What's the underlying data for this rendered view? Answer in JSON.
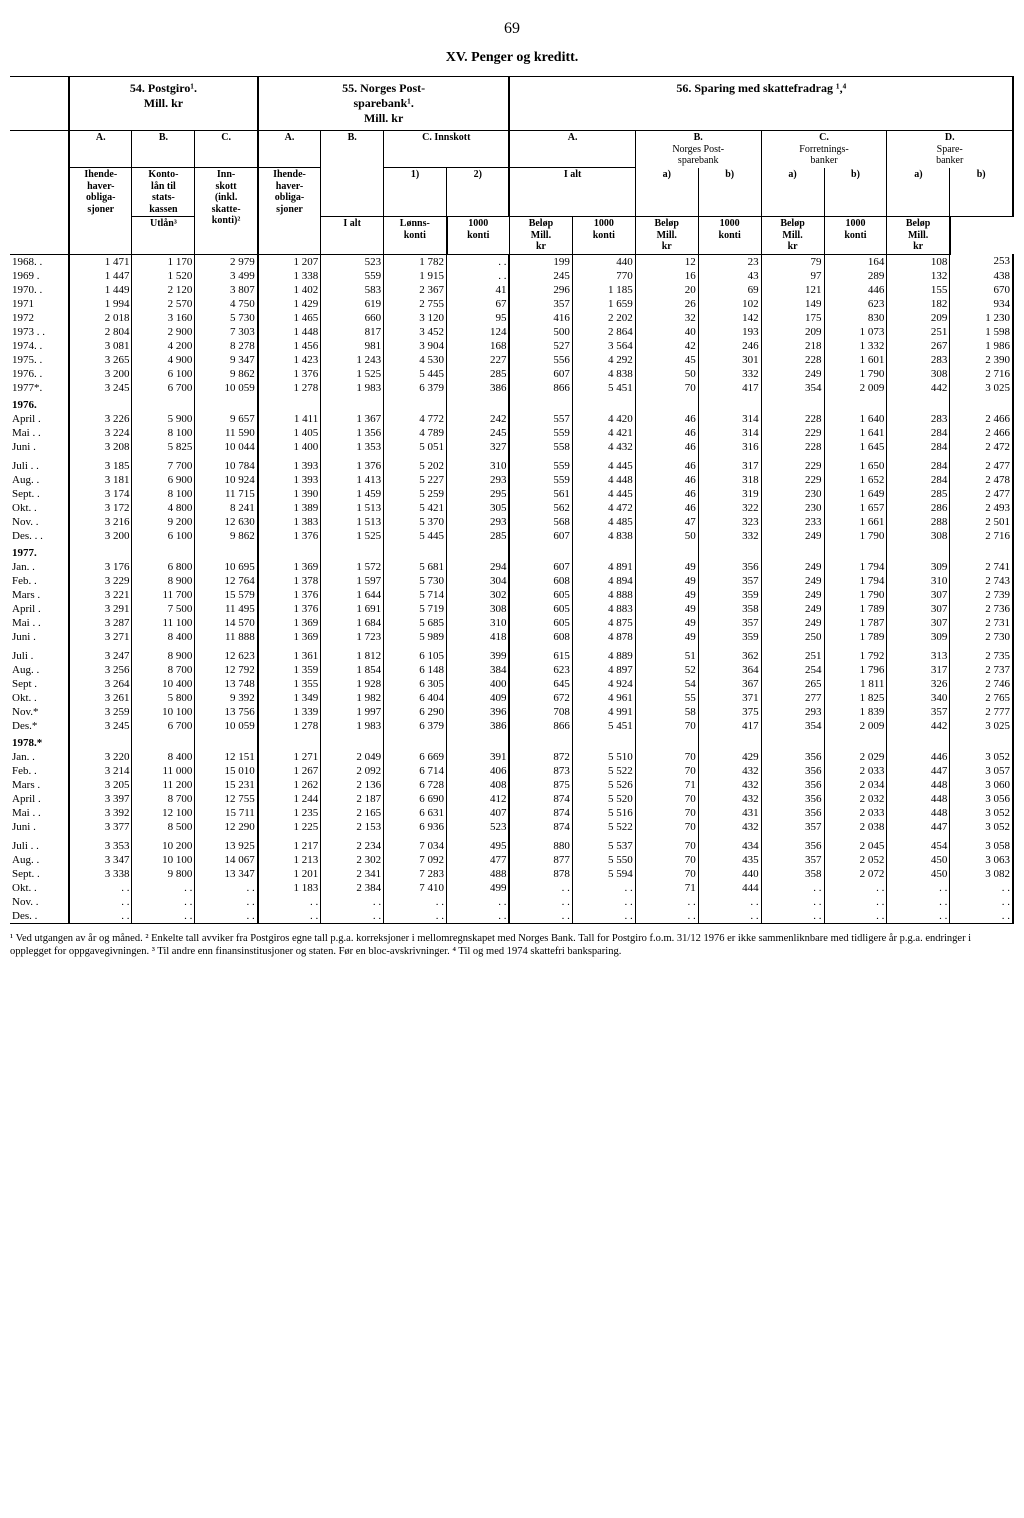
{
  "page_number": "69",
  "main_title": "XV. Penger og kreditt.",
  "sections": {
    "s54": "54. Postgiro¹.\nMill. kr",
    "s55": "55. Norges Post-\nsparebank¹.\nMill. kr",
    "s56": "56. Sparing med skattefradrag ¹,⁴"
  },
  "headers": {
    "A": "A.",
    "B": "B.",
    "C": "C.",
    "D": "D.",
    "ihende_obl": "Ihende-\nhaver-\nobliga-\nsjoner",
    "konto": "Konto-\nlån til\nstats-\nkassen",
    "innskott": "Inn-\nskott\n(inkl.\nskatte-\nkonti)²",
    "ihende2": "Ihende-\nhaver-\nobliga-\nsjoner",
    "utlan": "Utlån³",
    "innskott2": "C. Innskott",
    "one": "1)",
    "two": "2)",
    "ialt": "I alt",
    "lonns": "Lønns-\nkonti",
    "ialt2": "I alt",
    "norges_post": "Norges Post-\nsparebank",
    "forretnings": "Forretnings-\nbanker",
    "spare": "Spare-\nbanker",
    "a": "a)",
    "b": "b)",
    "konti1000": "1000\nkonti",
    "belop": "Beløp\nMill.\nkr"
  },
  "rows": [
    {
      "label": "1968. .",
      "v": [
        "1 471",
        "1 170",
        "2 979",
        "1 207",
        "523",
        "1 782",
        ". .",
        "199",
        "440",
        "12",
        "23",
        "79",
        "164",
        "108",
        "253"
      ]
    },
    {
      "label": "1969 .",
      "v": [
        "1 447",
        "1 520",
        "3 499",
        "1 338",
        "559",
        "1 915",
        ". .",
        "245",
        "770",
        "16",
        "43",
        "97",
        "289",
        "132",
        "438"
      ]
    },
    {
      "label": "1970. .",
      "v": [
        "1 449",
        "2 120",
        "3 807",
        "1 402",
        "583",
        "2 367",
        "41",
        "296",
        "1 185",
        "20",
        "69",
        "121",
        "446",
        "155",
        "670"
      ]
    },
    {
      "label": "1971",
      "v": [
        "1 994",
        "2 570",
        "4 750",
        "1 429",
        "619",
        "2 755",
        "67",
        "357",
        "1 659",
        "26",
        "102",
        "149",
        "623",
        "182",
        "934"
      ]
    },
    {
      "label": "1972",
      "v": [
        "2 018",
        "3 160",
        "5 730",
        "1 465",
        "660",
        "3 120",
        "95",
        "416",
        "2 202",
        "32",
        "142",
        "175",
        "830",
        "209",
        "1 230"
      ]
    },
    {
      "label": "1973 . .",
      "v": [
        "2 804",
        "2 900",
        "7 303",
        "1 448",
        "817",
        "3 452",
        "124",
        "500",
        "2 864",
        "40",
        "193",
        "209",
        "1 073",
        "251",
        "1 598"
      ]
    },
    {
      "label": "1974. .",
      "v": [
        "3 081",
        "4 200",
        "8 278",
        "1 456",
        "981",
        "3 904",
        "168",
        "527",
        "3 564",
        "42",
        "246",
        "218",
        "1 332",
        "267",
        "1 986"
      ]
    },
    {
      "label": "1975. .",
      "v": [
        "3 265",
        "4 900",
        "9 347",
        "1 423",
        "1 243",
        "4 530",
        "227",
        "556",
        "4 292",
        "45",
        "301",
        "228",
        "1 601",
        "283",
        "2 390"
      ]
    },
    {
      "label": "1976. .",
      "v": [
        "3 200",
        "6 100",
        "9 862",
        "1 376",
        "1 525",
        "5 445",
        "285",
        "607",
        "4 838",
        "50",
        "332",
        "249",
        "1 790",
        "308",
        "2 716"
      ]
    },
    {
      "label": "1977*.",
      "v": [
        "3 245",
        "6 700",
        "10 059",
        "1 278",
        "1 983",
        "6 379",
        "386",
        "866",
        "5 451",
        "70",
        "417",
        "354",
        "2 009",
        "442",
        "3 025"
      ]
    }
  ],
  "y1976": "1976.",
  "rows1976a": [
    {
      "label": "April .",
      "v": [
        "3 226",
        "5 900",
        "9 657",
        "1 411",
        "1 367",
        "4 772",
        "242",
        "557",
        "4 420",
        "46",
        "314",
        "228",
        "1 640",
        "283",
        "2 466"
      ]
    },
    {
      "label": "Mai . .",
      "v": [
        "3 224",
        "8 100",
        "11 590",
        "1 405",
        "1 356",
        "4 789",
        "245",
        "559",
        "4 421",
        "46",
        "314",
        "229",
        "1 641",
        "284",
        "2 466"
      ]
    },
    {
      "label": "Juni .",
      "v": [
        "3 208",
        "5 825",
        "10 044",
        "1 400",
        "1 353",
        "5 051",
        "327",
        "558",
        "4 432",
        "46",
        "316",
        "228",
        "1 645",
        "284",
        "2 472"
      ]
    }
  ],
  "rows1976b": [
    {
      "label": "Juli . .",
      "v": [
        "3 185",
        "7 700",
        "10 784",
        "1 393",
        "1 376",
        "5 202",
        "310",
        "559",
        "4 445",
        "46",
        "317",
        "229",
        "1 650",
        "284",
        "2 477"
      ]
    },
    {
      "label": "Aug. .",
      "v": [
        "3 181",
        "6 900",
        "10 924",
        "1 393",
        "1 413",
        "5 227",
        "293",
        "559",
        "4 448",
        "46",
        "318",
        "229",
        "1 652",
        "284",
        "2 478"
      ]
    },
    {
      "label": "Sept. .",
      "v": [
        "3 174",
        "8 100",
        "11 715",
        "1 390",
        "1 459",
        "5 259",
        "295",
        "561",
        "4 445",
        "46",
        "319",
        "230",
        "1 649",
        "285",
        "2 477"
      ]
    },
    {
      "label": "Okt. .",
      "v": [
        "3 172",
        "4 800",
        "8 241",
        "1 389",
        "1 513",
        "5 421",
        "305",
        "562",
        "4 472",
        "46",
        "322",
        "230",
        "1 657",
        "286",
        "2 493"
      ]
    },
    {
      "label": "Nov. .",
      "v": [
        "3 216",
        "9 200",
        "12 630",
        "1 383",
        "1 513",
        "5 370",
        "293",
        "568",
        "4 485",
        "47",
        "323",
        "233",
        "1 661",
        "288",
        "2 501"
      ]
    },
    {
      "label": "Des. . .",
      "v": [
        "3 200",
        "6 100",
        "9 862",
        "1 376",
        "1 525",
        "5 445",
        "285",
        "607",
        "4 838",
        "50",
        "332",
        "249",
        "1 790",
        "308",
        "2 716"
      ]
    }
  ],
  "y1977": "1977.",
  "rows1977a": [
    {
      "label": "Jan. .",
      "v": [
        "3 176",
        "6 800",
        "10 695",
        "1 369",
        "1 572",
        "5 681",
        "294",
        "607",
        "4 891",
        "49",
        "356",
        "249",
        "1 794",
        "309",
        "2 741"
      ]
    },
    {
      "label": "Feb. .",
      "v": [
        "3 229",
        "8 900",
        "12 764",
        "1 378",
        "1 597",
        "5 730",
        "304",
        "608",
        "4 894",
        "49",
        "357",
        "249",
        "1 794",
        "310",
        "2 743"
      ]
    },
    {
      "label": "Mars .",
      "v": [
        "3 221",
        "11 700",
        "15 579",
        "1 376",
        "1 644",
        "5 714",
        "302",
        "605",
        "4 888",
        "49",
        "359",
        "249",
        "1 790",
        "307",
        "2 739"
      ]
    },
    {
      "label": "April .",
      "v": [
        "3 291",
        "7 500",
        "11 495",
        "1 376",
        "1 691",
        "5 719",
        "308",
        "605",
        "4 883",
        "49",
        "358",
        "249",
        "1 789",
        "307",
        "2 736"
      ]
    },
    {
      "label": "Mai . .",
      "v": [
        "3 287",
        "11 100",
        "14 570",
        "1 369",
        "1 684",
        "5 685",
        "310",
        "605",
        "4 875",
        "49",
        "357",
        "249",
        "1 787",
        "307",
        "2 731"
      ]
    },
    {
      "label": "Juni .",
      "v": [
        "3 271",
        "8 400",
        "11 888",
        "1 369",
        "1 723",
        "5 989",
        "418",
        "608",
        "4 878",
        "49",
        "359",
        "250",
        "1 789",
        "309",
        "2 730"
      ]
    }
  ],
  "rows1977b": [
    {
      "label": "Juli .",
      "v": [
        "3 247",
        "8 900",
        "12 623",
        "1 361",
        "1 812",
        "6 105",
        "399",
        "615",
        "4 889",
        "51",
        "362",
        "251",
        "1 792",
        "313",
        "2 735"
      ]
    },
    {
      "label": "Aug. .",
      "v": [
        "3 256",
        "8 700",
        "12 792",
        "1 359",
        "1 854",
        "6 148",
        "384",
        "623",
        "4 897",
        "52",
        "364",
        "254",
        "1 796",
        "317",
        "2 737"
      ]
    },
    {
      "label": "Sept .",
      "v": [
        "3 264",
        "10 400",
        "13 748",
        "1 355",
        "1 928",
        "6 305",
        "400",
        "645",
        "4 924",
        "54",
        "367",
        "265",
        "1 811",
        "326",
        "2 746"
      ]
    },
    {
      "label": "Okt. .",
      "v": [
        "3 261",
        "5 800",
        "9 392",
        "1 349",
        "1 982",
        "6 404",
        "409",
        "672",
        "4 961",
        "55",
        "371",
        "277",
        "1 825",
        "340",
        "2 765"
      ]
    },
    {
      "label": "Nov.*",
      "v": [
        "3 259",
        "10 100",
        "13 756",
        "1 339",
        "1 997",
        "6 290",
        "396",
        "708",
        "4 991",
        "58",
        "375",
        "293",
        "1 839",
        "357",
        "2 777"
      ]
    },
    {
      "label": "Des.*",
      "v": [
        "3 245",
        "6 700",
        "10 059",
        "1 278",
        "1 983",
        "6 379",
        "386",
        "866",
        "5 451",
        "70",
        "417",
        "354",
        "2 009",
        "442",
        "3 025"
      ]
    }
  ],
  "y1978": "1978.*",
  "rows1978a": [
    {
      "label": "Jan. .",
      "v": [
        "3 220",
        "8 400",
        "12 151",
        "1 271",
        "2 049",
        "6 669",
        "391",
        "872",
        "5 510",
        "70",
        "429",
        "356",
        "2 029",
        "446",
        "3 052"
      ]
    },
    {
      "label": "Feb. .",
      "v": [
        "3 214",
        "11 000",
        "15 010",
        "1 267",
        "2 092",
        "6 714",
        "406",
        "873",
        "5 522",
        "70",
        "432",
        "356",
        "2 033",
        "447",
        "3 057"
      ]
    },
    {
      "label": "Mars .",
      "v": [
        "3 205",
        "11 200",
        "15 231",
        "1 262",
        "2 136",
        "6 728",
        "408",
        "875",
        "5 526",
        "71",
        "432",
        "356",
        "2 034",
        "448",
        "3 060"
      ]
    },
    {
      "label": "April .",
      "v": [
        "3 397",
        "8 700",
        "12 755",
        "1 244",
        "2 187",
        "6 690",
        "412",
        "874",
        "5 520",
        "70",
        "432",
        "356",
        "2 032",
        "448",
        "3 056"
      ]
    },
    {
      "label": "Mai . .",
      "v": [
        "3 392",
        "12 100",
        "15 711",
        "1 235",
        "2 165",
        "6 631",
        "407",
        "874",
        "5 516",
        "70",
        "431",
        "356",
        "2 033",
        "448",
        "3 052"
      ]
    },
    {
      "label": "Juni .",
      "v": [
        "3 377",
        "8 500",
        "12 290",
        "1 225",
        "2 153",
        "6 936",
        "523",
        "874",
        "5 522",
        "70",
        "432",
        "357",
        "2 038",
        "447",
        "3 052"
      ]
    }
  ],
  "rows1978b": [
    {
      "label": "Juli . .",
      "v": [
        "3 353",
        "10 200",
        "13 925",
        "1 217",
        "2 234",
        "7 034",
        "495",
        "880",
        "5 537",
        "70",
        "434",
        "356",
        "2 045",
        "454",
        "3 058"
      ]
    },
    {
      "label": "Aug. .",
      "v": [
        "3 347",
        "10 100",
        "14 067",
        "1 213",
        "2 302",
        "7 092",
        "477",
        "877",
        "5 550",
        "70",
        "435",
        "357",
        "2 052",
        "450",
        "3 063"
      ]
    },
    {
      "label": "Sept. .",
      "v": [
        "3 338",
        "9 800",
        "13 347",
        "1 201",
        "2 341",
        "7 283",
        "488",
        "878",
        "5 594",
        "70",
        "440",
        "358",
        "2 072",
        "450",
        "3 082"
      ]
    },
    {
      "label": "Okt. .",
      "v": [
        ". .",
        ". .",
        ". .",
        "1 183",
        "2 384",
        "7 410",
        "499",
        ". .",
        ". .",
        "71",
        "444",
        ". .",
        ". .",
        ". .",
        ". ."
      ]
    },
    {
      "label": "Nov. .",
      "v": [
        ". .",
        ". .",
        ". .",
        ". .",
        ". .",
        ". .",
        ". .",
        ". .",
        ". .",
        ". .",
        ". .",
        ". .",
        ". .",
        ". .",
        ". ."
      ]
    },
    {
      "label": "Des. .",
      "v": [
        ". .",
        ". .",
        ". .",
        ". .",
        ". .",
        ". .",
        ". .",
        ". .",
        ". .",
        ". .",
        ". .",
        ". .",
        ". .",
        ". .",
        ". ."
      ]
    }
  ],
  "footnotes": "¹ Ved utgangen av år og måned. ² Enkelte tall avviker fra Postgiros egne tall p.g.a. korreksjoner i mellomregnskapet med Norges Bank. Tall for Postgiro f.o.m. 31/12 1976 er ikke sammenliknbare med tidligere år p.g.a. endringer i opplegget for oppgavegivningen. ³ Til andre enn finansinstitusjoner og staten. Før en bloc-avskrivninger. ⁴ Til og med 1974 skattefri banksparing."
}
